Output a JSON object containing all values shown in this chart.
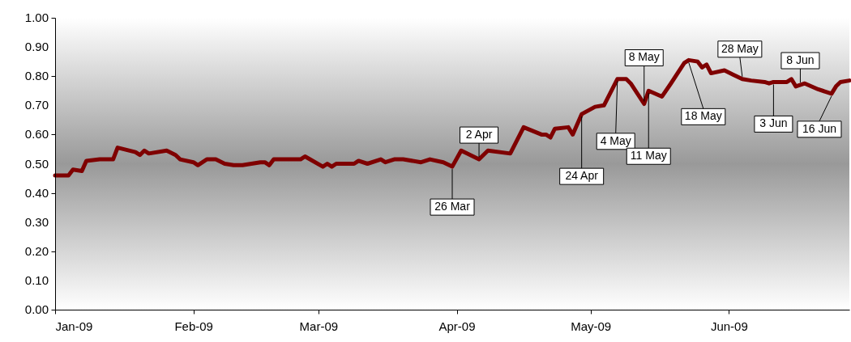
{
  "chart_data": {
    "type": "line",
    "x": [
      "2009-01-01",
      "2009-01-04",
      "2009-01-05",
      "2009-01-07",
      "2009-01-08",
      "2009-01-11",
      "2009-01-14",
      "2009-01-15",
      "2009-01-19",
      "2009-01-20",
      "2009-01-21",
      "2009-01-22",
      "2009-01-26",
      "2009-01-28",
      "2009-01-29",
      "2009-02-01",
      "2009-02-02",
      "2009-02-04",
      "2009-02-06",
      "2009-02-08",
      "2009-02-10",
      "2009-02-12",
      "2009-02-16",
      "2009-02-17",
      "2009-02-18",
      "2009-02-19",
      "2009-02-25",
      "2009-02-26",
      "2009-03-02",
      "2009-03-03",
      "2009-03-04",
      "2009-03-05",
      "2009-03-09",
      "2009-03-10",
      "2009-03-12",
      "2009-03-15",
      "2009-03-16",
      "2009-03-18",
      "2009-03-20",
      "2009-03-24",
      "2009-03-26",
      "2009-03-29",
      "2009-03-31",
      "2009-04-02",
      "2009-04-06",
      "2009-04-08",
      "2009-04-13",
      "2009-04-16",
      "2009-04-20",
      "2009-04-21",
      "2009-04-22",
      "2009-04-23",
      "2009-04-26",
      "2009-04-27",
      "2009-04-29",
      "2009-05-02",
      "2009-05-04",
      "2009-05-07",
      "2009-05-09",
      "2009-05-10",
      "2009-05-13",
      "2009-05-14",
      "2009-05-17",
      "2009-05-19",
      "2009-05-22",
      "2009-05-23",
      "2009-05-25",
      "2009-05-26",
      "2009-05-27",
      "2009-05-28",
      "2009-05-31",
      "2009-06-02",
      "2009-06-04",
      "2009-06-06",
      "2009-06-09",
      "2009-06-10",
      "2009-06-11",
      "2009-06-14",
      "2009-06-15",
      "2009-06-16",
      "2009-06-18",
      "2009-06-21",
      "2009-06-24",
      "2009-06-25",
      "2009-06-26",
      "2009-06-28"
    ],
    "series": [
      {
        "color": "#7f0000",
        "values": [
          0.46,
          0.46,
          0.48,
          0.475,
          0.51,
          0.515,
          0.515,
          0.555,
          0.54,
          0.53,
          0.545,
          0.535,
          0.545,
          0.53,
          0.515,
          0.505,
          0.495,
          0.515,
          0.515,
          0.5,
          0.495,
          0.495,
          0.505,
          0.505,
          0.495,
          0.515,
          0.515,
          0.525,
          0.49,
          0.5,
          0.49,
          0.5,
          0.5,
          0.51,
          0.5,
          0.515,
          0.505,
          0.515,
          0.515,
          0.505,
          0.515,
          0.505,
          0.49,
          0.545,
          0.515,
          0.545,
          0.535,
          0.625,
          0.6,
          0.6,
          0.59,
          0.62,
          0.625,
          0.6,
          0.67,
          0.695,
          0.7,
          0.79,
          0.79,
          0.775,
          0.705,
          0.75,
          0.73,
          0.775,
          0.845,
          0.855,
          0.85,
          0.83,
          0.84,
          0.81,
          0.82,
          0.805,
          0.79,
          0.785,
          0.78,
          0.775,
          0.78,
          0.78,
          0.79,
          0.765,
          0.775,
          0.755,
          0.74,
          0.765,
          0.78,
          0.785
        ]
      }
    ],
    "xlim": [
      "2009-01-01",
      "2009-06-28"
    ],
    "xticks": [
      {
        "value": "2009-01-01",
        "label": "Jan-09"
      },
      {
        "value": "2009-02-01",
        "label": "Feb-09"
      },
      {
        "value": "2009-03-01",
        "label": "Mar-09"
      },
      {
        "value": "2009-04-01",
        "label": "Apr-09"
      },
      {
        "value": "2009-05-01",
        "label": "May-09"
      },
      {
        "value": "2009-06-01",
        "label": "Jun-09"
      }
    ],
    "ylim": [
      0,
      1
    ],
    "yticks": [
      {
        "value": 0,
        "label": "0.00"
      },
      {
        "value": 0.1,
        "label": "0.10"
      },
      {
        "value": 0.2,
        "label": "0.20"
      },
      {
        "value": 0.3,
        "label": "0.30"
      },
      {
        "value": 0.4,
        "label": "0.40"
      },
      {
        "value": 0.5,
        "label": "0.50"
      },
      {
        "value": 0.6,
        "label": "0.60"
      },
      {
        "value": 0.7,
        "label": "0.70"
      },
      {
        "value": 0.8,
        "label": "0.80"
      },
      {
        "value": 0.9,
        "label": "0.90"
      },
      {
        "value": 1,
        "label": "1.00"
      }
    ],
    "grid": false,
    "marker": "none",
    "line_style": "solid",
    "annotations": [
      {
        "text": "26 Mar",
        "x": "2009-03-31",
        "y": 0.49
      },
      {
        "text": "2 Apr",
        "x": "2009-04-06",
        "y": 0.515
      },
      {
        "text": "24 Apr",
        "x": "2009-04-29",
        "y": 0.67
      },
      {
        "text": "4 May",
        "x": "2009-05-07",
        "y": 0.79
      },
      {
        "text": "8 May",
        "x": "2009-05-13",
        "y": 0.705
      },
      {
        "text": "11 May",
        "x": "2009-05-14",
        "y": 0.75
      },
      {
        "text": "18 May",
        "x": "2009-05-23",
        "y": 0.855
      },
      {
        "text": "28 May",
        "x": "2009-06-04",
        "y": 0.79
      },
      {
        "text": "3 Jun",
        "x": "2009-06-11",
        "y": 0.78
      },
      {
        "text": "8 Jun",
        "x": "2009-06-17",
        "y": 0.77
      },
      {
        "text": "16 Jun",
        "x": "2009-06-24",
        "y": 0.74
      }
    ]
  }
}
